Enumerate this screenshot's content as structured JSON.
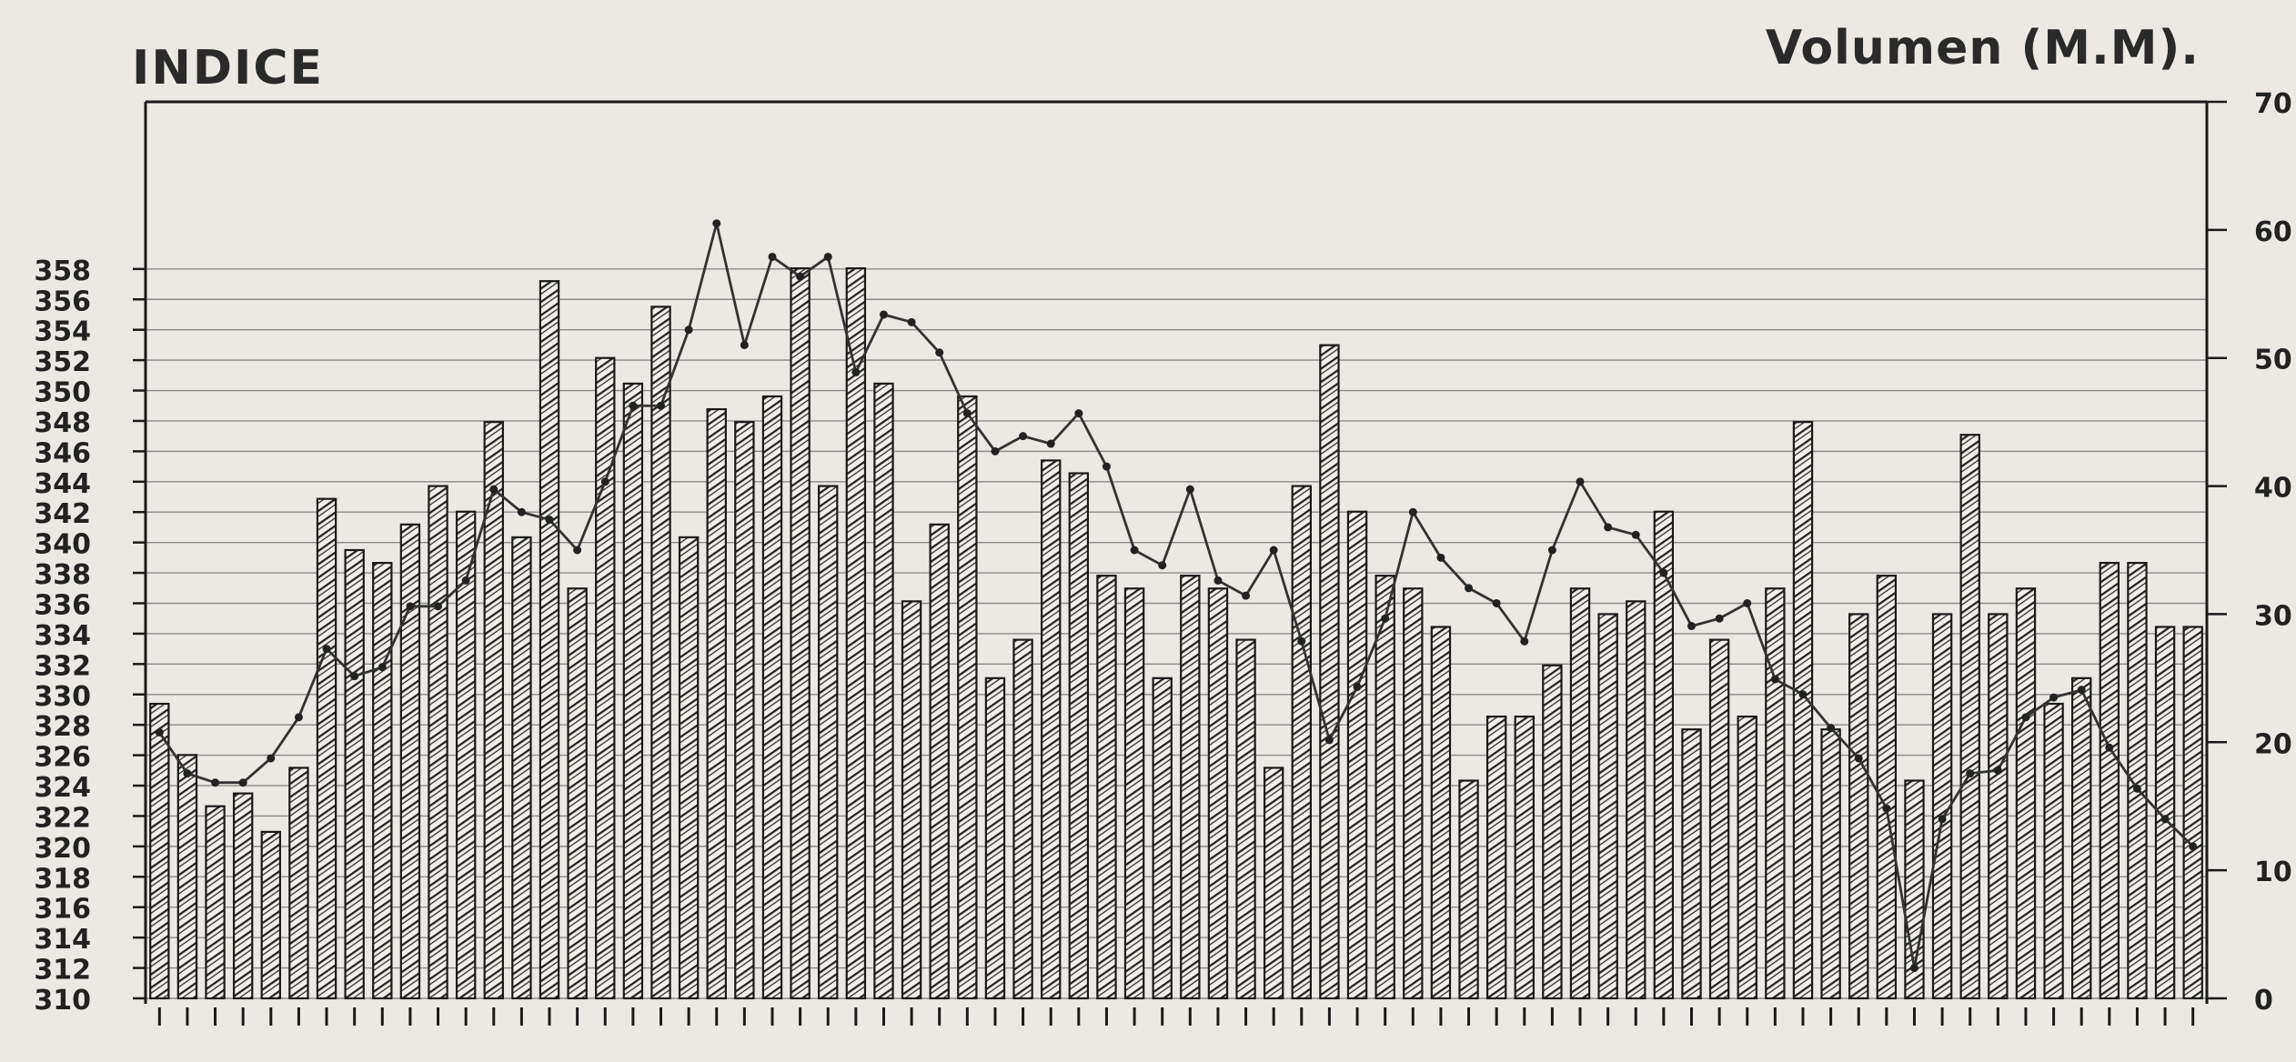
{
  "chart_data": {
    "type": "bar",
    "ylabel_left": "INDICE",
    "ylabel_right": "Volumen (M.M).",
    "left_axis": {
      "ylim": [
        310,
        369
      ],
      "ticks": [
        358,
        356,
        354,
        352,
        350,
        348,
        346,
        344,
        342,
        340,
        338,
        336,
        334,
        332,
        330,
        328,
        326,
        324,
        322,
        320,
        318,
        316,
        314,
        312,
        310
      ],
      "tick_labels": [
        "358",
        "356",
        "354",
        "352",
        "350",
        "348",
        "346",
        "344",
        "342",
        "340",
        "338",
        "336",
        "334",
        "332",
        "330",
        "328",
        "326",
        "324",
        "322",
        "320",
        "318",
        "316",
        "314",
        "312",
        "310"
      ]
    },
    "right_axis": {
      "ylim": [
        0,
        70
      ],
      "ticks": [
        70,
        60,
        50,
        40,
        30,
        20,
        10,
        0
      ],
      "tick_labels": [
        "70",
        "60",
        "50",
        "40",
        "30",
        "20",
        "10",
        "0"
      ]
    },
    "grid": true,
    "categories_count": 74,
    "series": [
      {
        "kind": "bar",
        "axis": "right",
        "values": [
          23,
          19,
          15,
          16,
          13,
          18,
          39,
          35,
          34,
          37,
          40,
          38,
          45,
          36,
          56,
          32,
          50,
          48,
          54,
          36,
          46,
          45,
          47,
          57,
          40,
          57,
          48,
          31,
          37,
          47,
          25,
          28,
          42,
          41,
          33,
          32,
          25,
          33,
          32,
          28,
          18,
          40,
          51,
          38,
          33,
          32,
          29,
          17,
          22,
          22,
          26,
          32,
          30,
          31,
          38,
          21,
          28,
          22,
          32,
          45,
          21,
          30,
          33,
          17,
          30,
          44,
          30,
          32,
          23,
          25,
          34,
          34,
          29,
          29
        ]
      },
      {
        "kind": "line",
        "axis": "left",
        "values": [
          327.5,
          324.8,
          324.2,
          324.2,
          325.8,
          328.5,
          333.0,
          331.2,
          331.8,
          335.8,
          335.8,
          337.5,
          343.5,
          342.0,
          341.5,
          339.5,
          344.0,
          349.0,
          349.0,
          354.0,
          361.0,
          353.0,
          358.8,
          357.5,
          358.8,
          351.2,
          355.0,
          354.5,
          352.5,
          348.5,
          346.0,
          347.0,
          346.5,
          348.5,
          345.0,
          339.5,
          338.5,
          343.5,
          337.5,
          336.5,
          339.5,
          333.5,
          327.0,
          330.5,
          335.0,
          342.0,
          339.0,
          337.0,
          336.0,
          333.5,
          339.5,
          344.0,
          341.0,
          340.5,
          338.0,
          334.5,
          335.0,
          336.0,
          331.0,
          330.0,
          327.8,
          325.8,
          322.5,
          312.0,
          321.8,
          324.8,
          325.0,
          328.5,
          329.8,
          330.3,
          326.5,
          323.8,
          321.8,
          320.0
        ]
      }
    ]
  }
}
